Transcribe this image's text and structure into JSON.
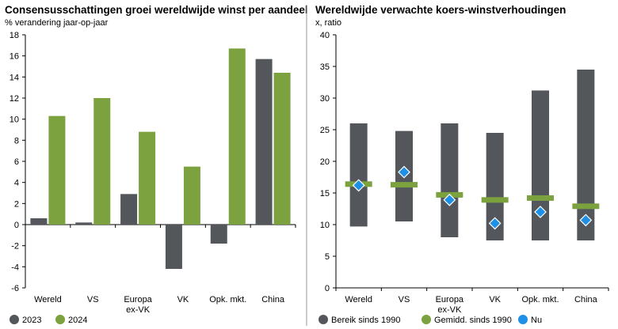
{
  "colors": {
    "grey": "#53565a",
    "green": "#7ba23f",
    "blue": "#1e90e6",
    "axis": "#000000",
    "divider": "#9a9a9a"
  },
  "chart_data": [
    {
      "type": "bar",
      "title": "Consensusschattingen groei wereldwijde winst per aandeel",
      "ylabel": "% verandering jaar-op-jaar",
      "ylim": [
        -6,
        18
      ],
      "yticks": [
        -6,
        -4,
        -2,
        0,
        2,
        4,
        6,
        8,
        10,
        12,
        14,
        16,
        18
      ],
      "categories": [
        "Wereld",
        "VS",
        "Europa\nex-VK",
        "VK",
        "Opk. mkt.",
        "China"
      ],
      "series": [
        {
          "name": "2023",
          "color": "#53565a",
          "values": [
            0.6,
            0.2,
            2.9,
            -4.2,
            -1.8,
            15.7
          ]
        },
        {
          "name": "2024",
          "color": "#7ba23f",
          "values": [
            10.3,
            12.0,
            8.8,
            5.5,
            16.7,
            14.4
          ]
        }
      ],
      "legend": "bottom-left",
      "grid": false
    },
    {
      "type": "range",
      "title": "Wereldwijde verwachte koers-winstverhoudingen",
      "ylabel": "x, ratio",
      "ylim": [
        0,
        40
      ],
      "yticks": [
        0,
        5,
        10,
        15,
        20,
        25,
        30,
        35,
        40
      ],
      "categories": [
        "Wereld",
        "VS",
        "Europa\nex-VK",
        "VK",
        "Opk. mkt.",
        "China"
      ],
      "series": [
        {
          "name": "Bereik sinds 1990",
          "color": "#53565a",
          "low": [
            9.7,
            10.5,
            8.0,
            7.5,
            7.5,
            7.5
          ],
          "high": [
            26.0,
            24.8,
            26.0,
            24.5,
            31.2,
            34.5
          ]
        },
        {
          "name": "Gemidd. sinds 1990",
          "color": "#7ba23f",
          "values": [
            16.4,
            16.3,
            14.7,
            13.9,
            14.2,
            12.9
          ]
        },
        {
          "name": "Nu",
          "color": "#1e90e6",
          "values": [
            16.2,
            18.3,
            13.9,
            10.2,
            12.0,
            10.7
          ]
        }
      ],
      "legend": "bottom",
      "grid": false
    }
  ]
}
